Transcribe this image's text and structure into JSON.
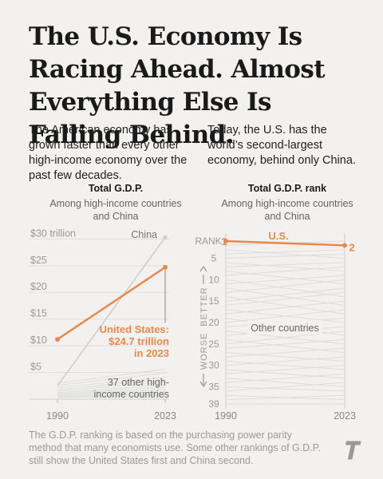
{
  "headline": "The U.S. Economy Is Racing Ahead. Almost Everything Else Is Falling Behind.",
  "intro_left": "The American economy has grown faster than every other high-income economy over the past few decades.",
  "intro_right": "Today, the U.S. has the world’s second-largest economy, behind only China.",
  "footnote": "The G.D.P. ranking is based on the purchasing power parity method that many economists use. Some other rankings of G.D.P. still show the United States first and China second.",
  "colors": {
    "us": "#e8894a",
    "china": "#cccccc",
    "others": "#dddddd",
    "axis_text": "#999999",
    "background": "#f2f1ef"
  },
  "chart_data": [
    {
      "type": "line",
      "title": "Total G.D.P.",
      "subtitle": "Among high-income countries and China",
      "x": [
        1990,
        2023
      ],
      "x_ticks": [
        "1990",
        "2023"
      ],
      "ylim": [
        0,
        30.5
      ],
      "y_ticks": [
        {
          "value": 5,
          "label": "$5"
        },
        {
          "value": 10,
          "label": "$10"
        },
        {
          "value": 15,
          "label": "$15"
        },
        {
          "value": 20,
          "label": "$20"
        },
        {
          "value": 25,
          "label": "$25"
        },
        {
          "value": 30,
          "label": "$30 trillion"
        }
      ],
      "grid": true,
      "series": [
        {
          "name": "United States",
          "values": [
            11.2,
            24.7
          ],
          "color": "#e8894a"
        },
        {
          "name": "China",
          "values": [
            2.5,
            30.3
          ],
          "color": "#cccccc"
        },
        {
          "name": "37 other high-income countries",
          "group": true,
          "color": "#dddddd",
          "lines": [
            [
              3.0,
              5.6
            ],
            [
              2.6,
              4.9
            ],
            [
              2.2,
              4.1
            ],
            [
              1.8,
              3.7
            ],
            [
              1.5,
              3.2
            ],
            [
              1.2,
              2.6
            ],
            [
              1.0,
              2.2
            ],
            [
              0.8,
              1.8
            ],
            [
              0.6,
              1.4
            ],
            [
              0.4,
              1.0
            ],
            [
              0.3,
              0.7
            ]
          ]
        }
      ],
      "annotations": {
        "china": "China",
        "us_name": "United States:",
        "us_value": "$24.7 trillion",
        "us_year": "in 2023",
        "others_line1": "37 other high-",
        "others_line2": "income countries"
      }
    },
    {
      "type": "line",
      "title": "Total G.D.P. rank",
      "subtitle": "Among high-income countries and China",
      "x": [
        1990,
        2023
      ],
      "x_ticks": [
        "1990",
        "2023"
      ],
      "y_reversed": true,
      "ylim": [
        1,
        39
      ],
      "rank_label": "RANK",
      "y_ticks": [
        1,
        5,
        10,
        15,
        20,
        25,
        30,
        35,
        39
      ],
      "axis_better": "BETTER",
      "axis_worse": "WORSE",
      "series": [
        {
          "name": "U.S.",
          "values": [
            1,
            2
          ],
          "color": "#e8894a",
          "start_label": "1",
          "end_label": "2"
        },
        {
          "name": "Other countries",
          "group": true,
          "color": "#dddddd",
          "lines": [
            [
              2,
              1
            ],
            [
              3,
              5
            ],
            [
              4,
              3
            ],
            [
              5,
              4
            ],
            [
              6,
              8
            ],
            [
              7,
              6
            ],
            [
              8,
              11
            ],
            [
              9,
              7
            ],
            [
              10,
              14
            ],
            [
              11,
              9
            ],
            [
              12,
              16
            ],
            [
              13,
              10
            ],
            [
              14,
              18
            ],
            [
              15,
              12
            ],
            [
              16,
              13
            ],
            [
              17,
              20
            ],
            [
              18,
              15
            ],
            [
              19,
              23
            ],
            [
              20,
              17
            ],
            [
              21,
              19
            ],
            [
              22,
              25
            ],
            [
              23,
              21
            ],
            [
              24,
              27
            ],
            [
              25,
              22
            ],
            [
              26,
              24
            ],
            [
              27,
              29
            ],
            [
              28,
              26
            ],
            [
              29,
              31
            ],
            [
              30,
              28
            ],
            [
              31,
              33
            ],
            [
              32,
              30
            ],
            [
              33,
              35
            ],
            [
              34,
              32
            ],
            [
              35,
              36
            ],
            [
              36,
              34
            ],
            [
              37,
              38
            ],
            [
              38,
              37
            ],
            [
              39,
              39
            ]
          ]
        }
      ],
      "annotations": {
        "others": "Other countries"
      }
    }
  ]
}
